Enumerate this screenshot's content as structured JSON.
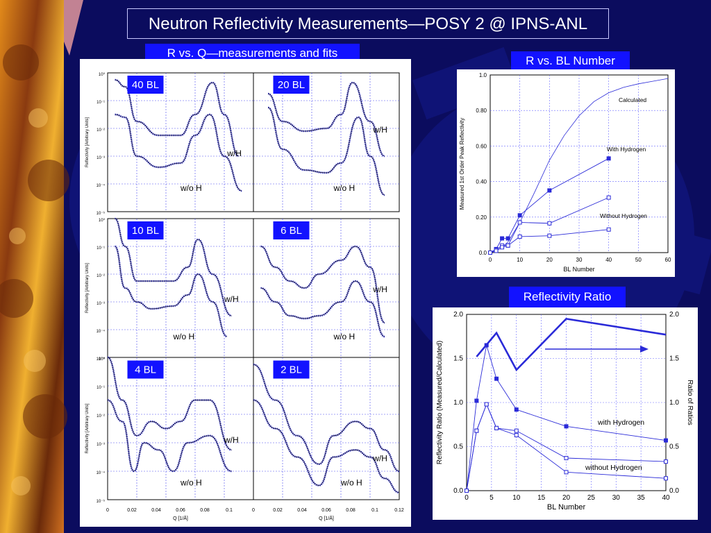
{
  "slide": {
    "title": "Neutron Reflectivity Measurements—POSY 2 @ IPNS-ANL",
    "colors": {
      "background": "#0b0c5e",
      "accent_box": "#1212ff",
      "plot_line": "#2a2ad8"
    }
  },
  "left_panel": {
    "label": "R vs. Q—measurements and fits",
    "y_axis_label": "Reflectivity [Arbitrary Units]",
    "x_axis_label": "Q [1/Å]",
    "y_tick_labels": [
      "10⁰",
      "10⁻¹",
      "10⁻²",
      "10⁻³",
      "10⁻⁴",
      "10⁻⁵"
    ],
    "x_ticks_left": [
      "0",
      "0.02",
      "0.04",
      "0.06",
      "0.08",
      "0.1"
    ],
    "x_ticks_right": [
      "0.02",
      "0.04",
      "0.06",
      "0.08",
      "0.1",
      "0.12"
    ],
    "x_tick_zero_right": "0",
    "subplots": [
      {
        "label": "40 BL",
        "wh": "w/H",
        "woh": "w/o H"
      },
      {
        "label": "20 BL",
        "wh": "w/H",
        "woh": "w/o H"
      },
      {
        "label": "10 BL",
        "wh": "w/H",
        "woh": "w/o H"
      },
      {
        "label": "6 BL",
        "wh": "w/H",
        "woh": "w/o H"
      },
      {
        "label": "4 BL",
        "wh": "w/H",
        "woh": "w/o H"
      },
      {
        "label": "2 BL",
        "wh": "w/H",
        "woh": "w/o H"
      }
    ]
  },
  "chart_data": [
    {
      "type": "line",
      "title": "R vs. BL Number",
      "xlabel": "BL Number",
      "ylabel": "Measured 1st Order Peak Reflectivity",
      "xlim": [
        0,
        60
      ],
      "ylim": [
        0,
        1.0
      ],
      "x_ticks": [
        "0",
        "10",
        "20",
        "30",
        "40",
        "50",
        "60"
      ],
      "y_ticks": [
        "0.0",
        "0.20",
        "0.40",
        "0.60",
        "0.80",
        "1.0"
      ],
      "grid": true,
      "series": [
        {
          "name": "Calculated",
          "x": [
            0,
            2,
            4,
            6,
            10,
            15,
            20,
            25,
            30,
            35,
            40,
            45,
            50,
            55,
            60
          ],
          "y": [
            0,
            0.01,
            0.03,
            0.06,
            0.17,
            0.34,
            0.52,
            0.66,
            0.77,
            0.85,
            0.9,
            0.93,
            0.95,
            0.965,
            0.98
          ]
        },
        {
          "name": "With Hydrogen",
          "x": [
            0,
            2,
            4,
            6,
            10,
            20,
            40
          ],
          "y": [
            0,
            0.02,
            0.08,
            0.08,
            0.21,
            0.35,
            0.53
          ]
        },
        {
          "name": "Without Hydrogen",
          "x": [
            0,
            2,
            4,
            6,
            10,
            20,
            40
          ],
          "y": [
            0,
            0.015,
            0.04,
            0.04,
            0.17,
            0.165,
            0.31
          ]
        },
        {
          "name": "",
          "x": [
            0,
            2,
            4,
            6,
            10,
            20,
            40
          ],
          "y": [
            0,
            0.01,
            0.03,
            0.04,
            0.09,
            0.095,
            0.13
          ]
        }
      ]
    },
    {
      "type": "line",
      "title": "Reflectivity Ratio",
      "xlabel": "BL Number",
      "ylabel": "Reflectivity Ratio (Measured/Calculated)",
      "y2label": "Ratio of Ratios",
      "xlim": [
        0,
        40
      ],
      "ylim": [
        0,
        2.0
      ],
      "y2lim": [
        0,
        2.0
      ],
      "x_ticks": [
        "0",
        "5",
        "10",
        "15",
        "20",
        "25",
        "30",
        "35",
        "40"
      ],
      "y_ticks": [
        "0.0",
        "0.5",
        "1.0",
        "1.5",
        "2.0"
      ],
      "grid": true,
      "series": [
        {
          "name": "with Hydrogen",
          "x": [
            0,
            2,
            4,
            6,
            10,
            20,
            40
          ],
          "y": [
            0,
            1.02,
            1.65,
            1.27,
            0.92,
            0.73,
            0.57
          ]
        },
        {
          "name": "without Hydrogen",
          "x": [
            0,
            2,
            4,
            6,
            10,
            20,
            40
          ],
          "y": [
            0,
            0.68,
            0.98,
            0.71,
            0.68,
            0.37,
            0.33
          ]
        },
        {
          "name": "",
          "x": [
            0,
            2,
            4,
            6,
            10,
            20,
            40
          ],
          "y": [
            0,
            0.68,
            0.98,
            0.71,
            0.63,
            0.21,
            0.14
          ]
        },
        {
          "name": "",
          "axis": "right",
          "x": [
            2,
            6,
            10,
            20,
            40
          ],
          "y": [
            1.52,
            1.79,
            1.37,
            1.95,
            1.77
          ]
        }
      ]
    }
  ],
  "right_top": {
    "label": "R vs. BL Number",
    "calc_label": "Calculated",
    "wh_label": "With Hydrogen",
    "woh_label": "Without Hydrogen"
  },
  "right_bottom": {
    "label": "Reflectivity Ratio",
    "wh_label": "with Hydrogen",
    "woh_label": "without Hydrogen"
  }
}
